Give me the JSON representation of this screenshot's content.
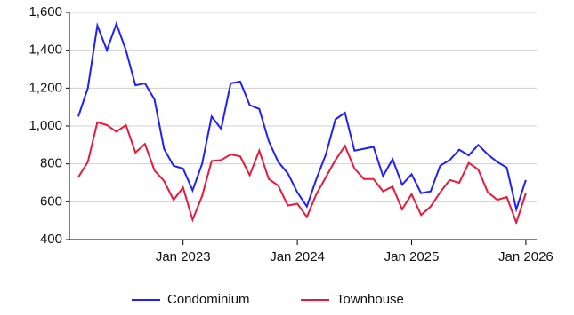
{
  "chart_data": {
    "type": "line",
    "x": [
      "2022-02",
      "2022-03",
      "2022-04",
      "2022-05",
      "2022-06",
      "2022-07",
      "2022-08",
      "2022-09",
      "2022-10",
      "2022-11",
      "2022-12",
      "2023-01",
      "2023-02",
      "2023-03",
      "2023-04",
      "2023-05",
      "2023-06",
      "2023-07",
      "2023-08",
      "2023-09",
      "2023-10",
      "2023-11",
      "2023-12",
      "2024-01",
      "2024-02",
      "2024-03",
      "2024-04",
      "2024-05",
      "2024-06",
      "2024-07",
      "2024-08",
      "2024-09",
      "2024-10",
      "2024-11",
      "2024-12",
      "2025-01",
      "2025-02",
      "2025-03",
      "2025-04",
      "2025-05",
      "2025-06",
      "2025-07",
      "2025-08",
      "2025-09",
      "2025-10",
      "2025-11",
      "2025-12",
      "2026-01"
    ],
    "series": [
      {
        "name": "Condominium",
        "color": "#1f1fff",
        "values": [
          1050,
          1200,
          1530,
          1400,
          1540,
          1400,
          1215,
          1225,
          1140,
          880,
          790,
          775,
          660,
          800,
          1050,
          985,
          1225,
          1235,
          1110,
          1090,
          920,
          810,
          750,
          650,
          575,
          720,
          850,
          1035,
          1070,
          870,
          880,
          890,
          735,
          825,
          690,
          745,
          645,
          655,
          790,
          820,
          875,
          845,
          900,
          850,
          810,
          780,
          560,
          715
        ]
      },
      {
        "name": "Townhouse",
        "color": "#e8193c",
        "values": [
          730,
          810,
          1020,
          1005,
          970,
          1005,
          860,
          905,
          765,
          710,
          610,
          675,
          505,
          630,
          815,
          820,
          850,
          840,
          740,
          870,
          720,
          685,
          580,
          590,
          520,
          640,
          730,
          820,
          895,
          775,
          720,
          720,
          655,
          680,
          560,
          640,
          530,
          575,
          650,
          715,
          700,
          805,
          770,
          650,
          610,
          625,
          490,
          645
        ]
      }
    ],
    "ylim": [
      400,
      1600
    ],
    "yticks": [
      400,
      600,
      800,
      {
        "value": 1000,
        "label": "1,000"
      },
      {
        "value": 1200,
        "label": "1,200"
      },
      {
        "value": 1400,
        "label": "1,400"
      },
      {
        "value": 1600,
        "label": "1,600"
      }
    ],
    "xticks": [
      {
        "value": "2023-01",
        "label": "Jan 2023"
      },
      {
        "value": "2024-01",
        "label": "Jan 2024"
      },
      {
        "value": "2025-01",
        "label": "Jan 2025"
      },
      {
        "value": "2026-01",
        "label": "Jan 2026"
      }
    ],
    "grid": true
  }
}
